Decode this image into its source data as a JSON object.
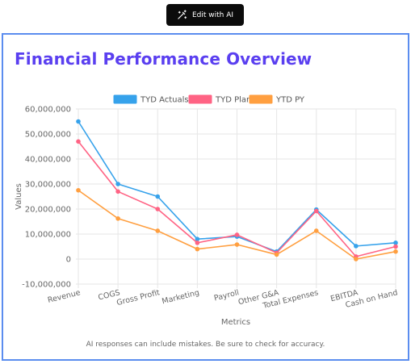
{
  "toolbar": {
    "edit_label": "Edit with AI",
    "edit_icon": "magic-wand-icon"
  },
  "panel": {
    "title": "Financial Performance Overview",
    "disclaimer": "AI responses can include mistakes. Be sure to check for accuracy.",
    "title_color": "#5a3ff0",
    "border_color": "#5b8def"
  },
  "chart_data": {
    "type": "line",
    "xlabel": "Metrics",
    "ylabel": "Values",
    "ylim": [
      -10000000,
      60000000
    ],
    "yticks": [
      -10000000,
      0,
      10000000,
      20000000,
      30000000,
      40000000,
      50000000,
      60000000
    ],
    "grid": true,
    "legend_position": "top-center",
    "categories": [
      "Revenue",
      "COGS",
      "Gross Profit",
      "Marketing",
      "Payroll",
      "Other G&A",
      "Total Expenses",
      "EBITDA",
      "Cash on Hand"
    ],
    "series": [
      {
        "name": "TYD Actuals",
        "color": "#36a2eb",
        "values": [
          55000000,
          30000000,
          25000000,
          8000000,
          9000000,
          3000000,
          19800000,
          5200000,
          6500000
        ]
      },
      {
        "name": "TYD Plan",
        "color": "#ff6384",
        "values": [
          47000000,
          27000000,
          20000000,
          6500000,
          9700000,
          2500000,
          19200000,
          1000000,
          5000000
        ]
      },
      {
        "name": "YTD PY",
        "color": "#ff9f40",
        "values": [
          27500000,
          16200000,
          11300000,
          4000000,
          5800000,
          1800000,
          11300000,
          0,
          3000000
        ]
      }
    ]
  }
}
